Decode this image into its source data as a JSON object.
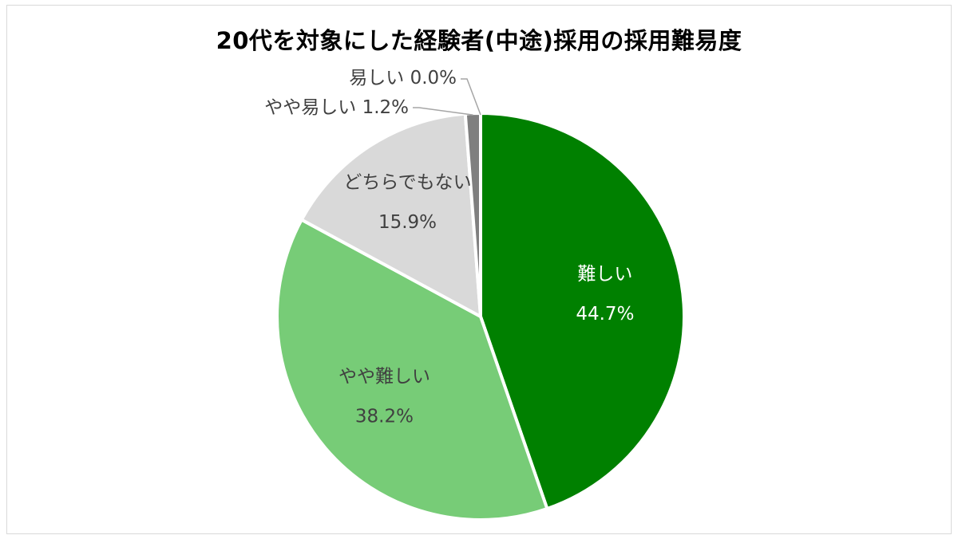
{
  "chart_data": {
    "type": "pie",
    "title": "20代を対象にした経験者(中途)採用の採用難易度",
    "slices": [
      {
        "label": "難しい",
        "value": 44.7,
        "display": "44.7%",
        "color": "#008000",
        "text_color": "#ffffff",
        "label_mode": "inside"
      },
      {
        "label": "やや難しい",
        "value": 38.2,
        "display": "38.2%",
        "color": "#77cc77",
        "text_color": "#404040",
        "label_mode": "inside"
      },
      {
        "label": "どちらでもない",
        "value": 15.9,
        "display": "15.9%",
        "color": "#d9d9d9",
        "text_color": "#404040",
        "label_mode": "inside"
      },
      {
        "label": "やや易しい",
        "value": 1.2,
        "display": "1.2%",
        "color": "#7f7f7f",
        "text_color": "#404040",
        "label_mode": "outside"
      },
      {
        "label": "易しい",
        "value": 0.0,
        "display": "0.0%",
        "color": "#bfbfbf",
        "text_color": "#404040",
        "label_mode": "outside"
      }
    ],
    "start_angle_deg": 0,
    "direction": "clockwise",
    "legend": "none"
  }
}
